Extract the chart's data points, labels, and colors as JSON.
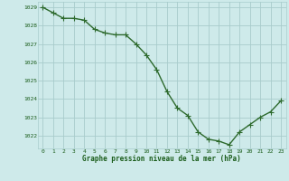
{
  "x": [
    0,
    1,
    2,
    3,
    4,
    5,
    6,
    7,
    8,
    9,
    10,
    11,
    12,
    13,
    14,
    15,
    16,
    17,
    18,
    19,
    20,
    21,
    22,
    23
  ],
  "y": [
    1029.0,
    1028.7,
    1028.4,
    1028.4,
    1028.3,
    1027.8,
    1027.6,
    1027.5,
    1027.5,
    1027.0,
    1026.4,
    1025.6,
    1024.4,
    1023.5,
    1023.1,
    1022.2,
    1021.8,
    1021.7,
    1021.5,
    1022.2,
    1022.6,
    1023.0,
    1023.3,
    1023.9
  ],
  "line_color": "#2d6a2d",
  "marker": "+",
  "marker_size": 4,
  "bg_color": "#ceeaea",
  "grid_color": "#a8cccc",
  "axis_label_color": "#1a5c1a",
  "tick_label_color": "#1a5c1a",
  "xlabel": "Graphe pression niveau de la mer (hPa)",
  "ylim": [
    1021.3,
    1029.3
  ],
  "yticks": [
    1022,
    1023,
    1024,
    1025,
    1026,
    1027,
    1028,
    1029
  ],
  "xticks": [
    0,
    1,
    2,
    3,
    4,
    5,
    6,
    7,
    8,
    9,
    10,
    11,
    12,
    13,
    14,
    15,
    16,
    17,
    18,
    19,
    20,
    21,
    22,
    23
  ],
  "line_width": 1.0,
  "marker_linewidth": 0.8
}
